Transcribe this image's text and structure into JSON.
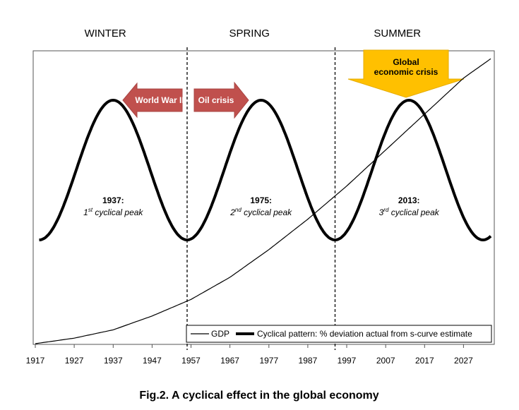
{
  "chart_data": {
    "type": "line",
    "caption": "Fig.2. A cyclical effect in the global economy",
    "x_ticks": [
      1917,
      1927,
      1937,
      1947,
      1957,
      1967,
      1977,
      1987,
      1997,
      2007,
      2017,
      2027
    ],
    "xlim": [
      1917,
      2034
    ],
    "seasons": [
      {
        "label": "WINTER",
        "year": 1935
      },
      {
        "label": "SPRING",
        "year": 1972
      },
      {
        "label": "SUMMER",
        "year": 2010
      }
    ],
    "period_dividers": [
      1956,
      1994
    ],
    "series": [
      {
        "name": "GDP",
        "kind": "thin",
        "x": [
          1917,
          1927,
          1937,
          1947,
          1957,
          1967,
          1977,
          1987,
          1997,
          2007,
          2017,
          2027,
          2034
        ],
        "y": [
          0,
          0.02,
          0.05,
          0.1,
          0.16,
          0.24,
          0.34,
          0.45,
          0.57,
          0.7,
          0.83,
          0.96,
          1.03
        ]
      },
      {
        "name": "Cyclical pattern: % deviation actual from s-curve estimate",
        "kind": "thick",
        "period_years": 38,
        "peak_years": [
          1937,
          1975,
          2013
        ],
        "trough_years": [
          1918,
          1956,
          1994,
          2032
        ],
        "x_range": [
          1918,
          2034
        ]
      }
    ],
    "peaks": [
      {
        "year_label": "1937:",
        "desc_sup": "st",
        "desc_pre": "1",
        "desc_post": " cyclical peak",
        "year": 1937
      },
      {
        "year_label": "1975:",
        "desc_sup": "nd",
        "desc_pre": "2",
        "desc_post": " cyclical peak",
        "year": 1975
      },
      {
        "year_label": "2013:",
        "desc_sup": "rd",
        "desc_pre": "3",
        "desc_post": " cyclical peak",
        "year": 2013
      }
    ],
    "annotations": {
      "world_war": "World War II",
      "oil_crisis": "Oil crisis",
      "global_crisis_line1": "Global",
      "global_crisis_line2": "economic crisis"
    },
    "colors": {
      "arrow_red": "#c0504d",
      "arrow_gold": "#ffc000",
      "line": "#000000"
    },
    "legend_placement": "bottom-right"
  }
}
